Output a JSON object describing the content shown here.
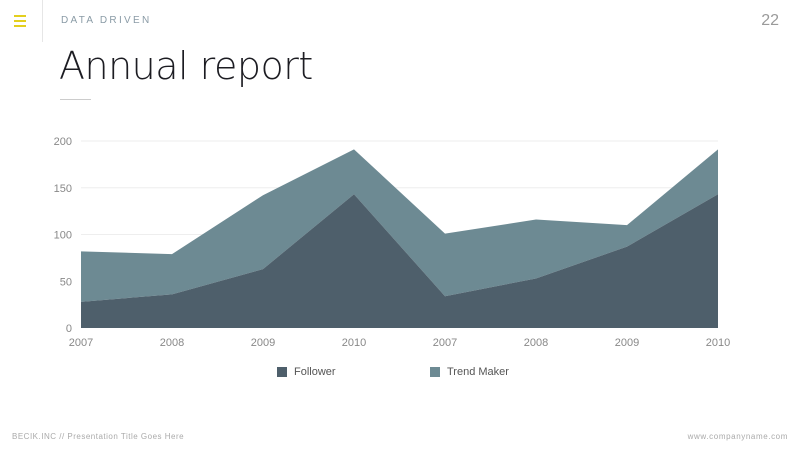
{
  "header": {
    "section": "DATA DRIVEN",
    "page_number": "22",
    "title": "Annual report"
  },
  "footer": {
    "left": "BECIK.INC // Presentation Title Goes Here",
    "right": "www.companyname.com"
  },
  "colors": {
    "accent": "#e3cf1f",
    "follower": "#4e5f6b",
    "trend_maker": "#6d8a93"
  },
  "chart_data": {
    "type": "area",
    "stacked": true,
    "categories": [
      "2007",
      "2008",
      "2009",
      "2010",
      "2007",
      "2008",
      "2009",
      "2010"
    ],
    "series": [
      {
        "name": "Follower",
        "values": [
          28,
          36,
          63,
          143,
          34,
          53,
          87,
          143
        ]
      },
      {
        "name": "Trend Maker",
        "values": [
          54,
          43,
          79,
          48,
          67,
          63,
          23,
          48
        ]
      }
    ],
    "yticks": [
      0,
      50,
      100,
      150,
      200
    ],
    "ylim": [
      0,
      200
    ],
    "grid": true,
    "legend": "bottom-center",
    "title": "",
    "xlabel": "",
    "ylabel": ""
  }
}
